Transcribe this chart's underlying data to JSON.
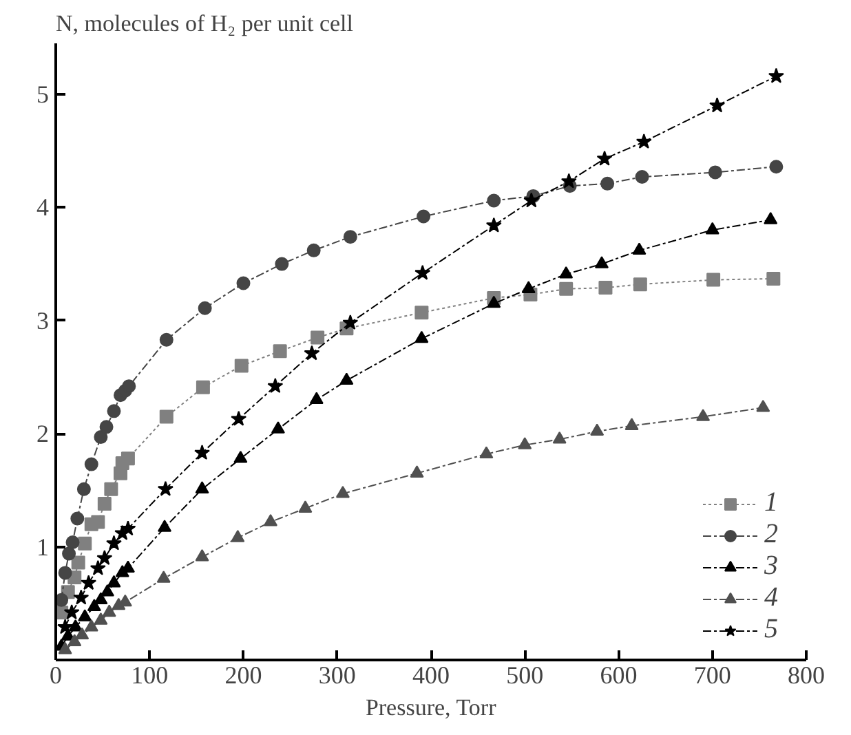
{
  "chart_data": {
    "type": "line",
    "ylabel": "N, molecules of H₂ per unit cell",
    "xlabel": "Pressure, Torr",
    "xlim": [
      0,
      800
    ],
    "xticks": [
      0,
      100,
      200,
      300,
      400,
      500,
      600,
      700,
      800
    ],
    "ylim": [
      0,
      5.45
    ],
    "yticks": [
      1,
      2,
      3,
      4,
      5
    ],
    "grid": false,
    "legend": "bottom right",
    "series": [
      {
        "name": "1",
        "color": "#808080",
        "marker": "square",
        "line_style": "dotted",
        "x": [
          6,
          13,
          20,
          24,
          31,
          38,
          45,
          52,
          59,
          69,
          71,
          77,
          118,
          157,
          198,
          239,
          279,
          310,
          390,
          467,
          506,
          544,
          586,
          623,
          701,
          765
        ],
        "values": [
          0.42,
          0.6,
          0.73,
          0.86,
          1.03,
          1.2,
          1.22,
          1.38,
          1.51,
          1.65,
          1.74,
          1.78,
          2.15,
          2.41,
          2.6,
          2.73,
          2.85,
          2.93,
          3.07,
          3.2,
          3.23,
          3.28,
          3.29,
          3.32,
          3.36,
          3.37
        ]
      },
      {
        "name": "2",
        "color": "#454545",
        "marker": "circle",
        "line_style": "dashed",
        "x": [
          6,
          10,
          14,
          18,
          23,
          30,
          38,
          48,
          54,
          62,
          69,
          74,
          78,
          118,
          159,
          200,
          241,
          275,
          314,
          392,
          467,
          509,
          548,
          588,
          625,
          703,
          768
        ],
        "values": [
          0.53,
          0.77,
          0.94,
          1.04,
          1.25,
          1.51,
          1.73,
          1.97,
          2.06,
          2.2,
          2.34,
          2.38,
          2.42,
          2.83,
          3.11,
          3.33,
          3.5,
          3.62,
          3.74,
          3.92,
          4.06,
          4.1,
          4.19,
          4.21,
          4.27,
          4.31,
          4.36
        ]
      },
      {
        "name": "3",
        "color": "#000000",
        "marker": "triangle",
        "line_style": "dashed",
        "x": [
          6,
          13,
          21,
          31,
          41,
          48,
          55,
          62,
          71,
          77,
          116,
          156,
          197,
          237,
          278,
          310,
          390,
          467,
          504,
          544,
          582,
          622,
          700,
          762
        ],
        "values": [
          0.12,
          0.21,
          0.29,
          0.38,
          0.47,
          0.53,
          0.6,
          0.68,
          0.77,
          0.81,
          1.17,
          1.51,
          1.78,
          2.04,
          2.3,
          2.47,
          2.84,
          3.15,
          3.28,
          3.41,
          3.5,
          3.62,
          3.8,
          3.89
        ]
      },
      {
        "name": "4",
        "color": "#505050",
        "marker": "triangle",
        "line_style": "dashed",
        "x": [
          10,
          20,
          28,
          38,
          48,
          57,
          67,
          74,
          115,
          156,
          194,
          229,
          266,
          306,
          385,
          459,
          500,
          537,
          577,
          614,
          690,
          754
        ],
        "values": [
          0.09,
          0.16,
          0.22,
          0.29,
          0.35,
          0.42,
          0.48,
          0.51,
          0.72,
          0.91,
          1.08,
          1.22,
          1.34,
          1.47,
          1.65,
          1.82,
          1.9,
          1.95,
          2.02,
          2.07,
          2.15,
          2.23
        ]
      },
      {
        "name": "5",
        "color": "#000000",
        "marker": "star",
        "line_style": "dashed",
        "x": [
          10,
          17,
          27,
          35,
          45,
          52,
          62,
          71,
          77,
          117,
          156,
          195,
          234,
          273,
          314,
          391,
          467,
          507,
          547,
          585,
          627,
          705,
          768
        ],
        "values": [
          0.29,
          0.42,
          0.55,
          0.68,
          0.81,
          0.9,
          1.03,
          1.12,
          1.16,
          1.51,
          1.83,
          2.13,
          2.42,
          2.71,
          2.98,
          3.42,
          3.84,
          4.06,
          4.23,
          4.43,
          4.58,
          4.9,
          5.16
        ]
      }
    ]
  }
}
